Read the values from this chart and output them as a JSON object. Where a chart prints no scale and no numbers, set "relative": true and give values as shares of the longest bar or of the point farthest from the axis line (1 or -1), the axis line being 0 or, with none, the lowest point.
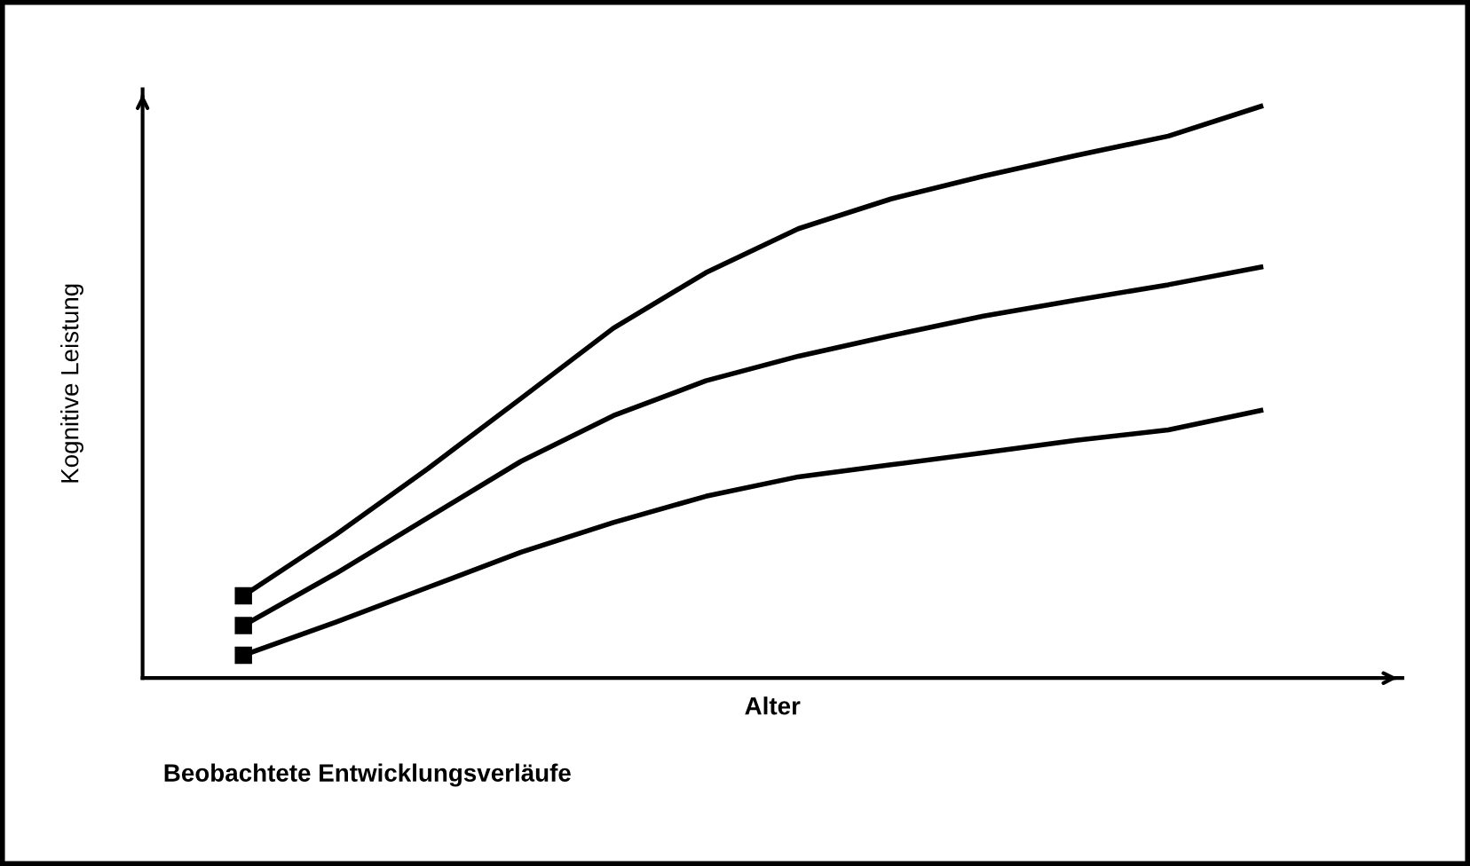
{
  "chart_data": {
    "type": "line",
    "relative": true,
    "xlabel": "Alter",
    "ylabel": "Kognitive Leistung",
    "annotations": [
      "Beobachtete Entwicklungsverläufe"
    ],
    "categories": [
      null,
      null,
      null,
      null,
      null,
      null,
      null,
      null,
      null,
      null,
      null,
      null
    ],
    "line_style": "solid",
    "grid": false,
    "series": [
      {
        "color": "#000000",
        "values": [
          0.144,
          0.251,
          0.367,
          0.489,
          0.612,
          0.709,
          0.786,
          0.838,
          0.878,
          0.914,
          0.948,
          1.0
        ]
      },
      {
        "color": "#000000",
        "values": [
          0.092,
          0.183,
          0.281,
          0.379,
          0.459,
          0.52,
          0.563,
          0.599,
          0.633,
          0.661,
          0.688,
          0.719
        ]
      },
      {
        "color": "#000000",
        "values": [
          0.04,
          0.098,
          0.159,
          0.22,
          0.272,
          0.318,
          0.352,
          0.373,
          0.394,
          0.416,
          0.434,
          0.468
        ]
      }
    ]
  }
}
